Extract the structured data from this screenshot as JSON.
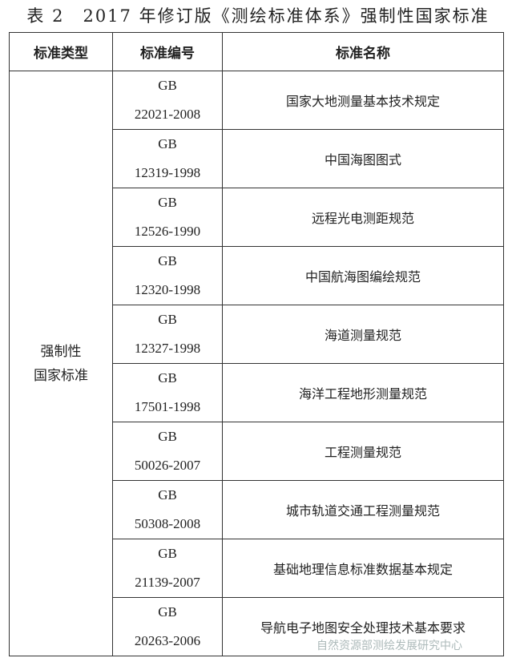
{
  "title": "表 2　2017 年修订版《测绘标准体系》强制性国家标准",
  "headers": [
    "标准类型",
    "标准编号",
    "标准名称"
  ],
  "type_label": [
    "强制性",
    "国家标准"
  ],
  "rows": [
    {
      "prefix": "GB",
      "number": "22021-2008",
      "name": "国家大地测量基本技术规定"
    },
    {
      "prefix": "GB",
      "number": "12319-1998",
      "name": "中国海图图式"
    },
    {
      "prefix": "GB",
      "number": "12526-1990",
      "name": "远程光电测距规范"
    },
    {
      "prefix": "GB",
      "number": "12320-1998",
      "name": "中国航海图编绘规范"
    },
    {
      "prefix": "GB",
      "number": "12327-1998",
      "name": "海道测量规范"
    },
    {
      "prefix": "GB",
      "number": "17501-1998",
      "name": "海洋工程地形测量规范"
    },
    {
      "prefix": "GB",
      "number": "50026-2007",
      "name": "工程测量规范"
    },
    {
      "prefix": "GB",
      "number": "50308-2008",
      "name": "城市轨道交通工程测量规范"
    },
    {
      "prefix": "GB",
      "number": "21139-2007",
      "name": "基础地理信息标准数据基本规定"
    },
    {
      "prefix": "GB",
      "number": "20263-2006",
      "name": "导航电子地图安全处理技术基本要求"
    }
  ],
  "watermark": "自然资源部测绘发展研究中心"
}
